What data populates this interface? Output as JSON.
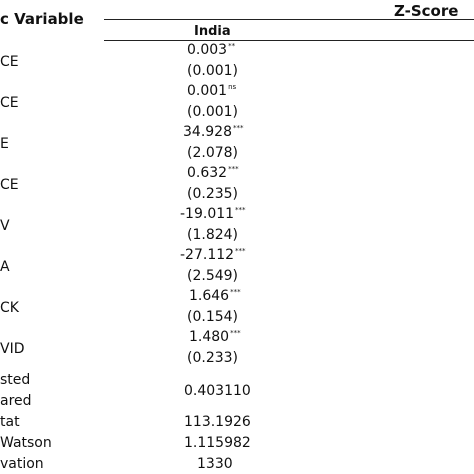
{
  "header": {
    "left_title": "c Variable",
    "right_title": "Z-Score",
    "country": "India"
  },
  "rows": [
    {
      "label": "CE",
      "coef": "0.003",
      "sig": "**",
      "se": "(0.001)"
    },
    {
      "label": "CE",
      "coef": "0.001",
      "sig": "ns",
      "se": "(0.001)"
    },
    {
      "label": "E",
      "coef": "34.928",
      "sig": "***",
      "se": "(2.078)"
    },
    {
      "label": "CE",
      "coef": "0.632",
      "sig": "***",
      "se": "(0.235)"
    },
    {
      "label": "V",
      "coef": "-19.011",
      "sig": "***",
      "se": "(1.824)"
    },
    {
      "label": "A",
      "coef": "-27.112",
      "sig": "***",
      "se": "(2.549)"
    },
    {
      "label": "CK",
      "coef": "1.646",
      "sig": "***",
      "se": "(0.154)"
    },
    {
      "label": "VID",
      "coef": "1.480",
      "sig": "***",
      "se": "(0.233)"
    }
  ],
  "stats": [
    {
      "label1": "sted",
      "label2": "ared",
      "value": "0.403110"
    },
    {
      "label": "tat",
      "value": "113.1926"
    },
    {
      "label": "Watson",
      "value": "1.115982"
    },
    {
      "label": "vation",
      "value": "1330"
    }
  ]
}
